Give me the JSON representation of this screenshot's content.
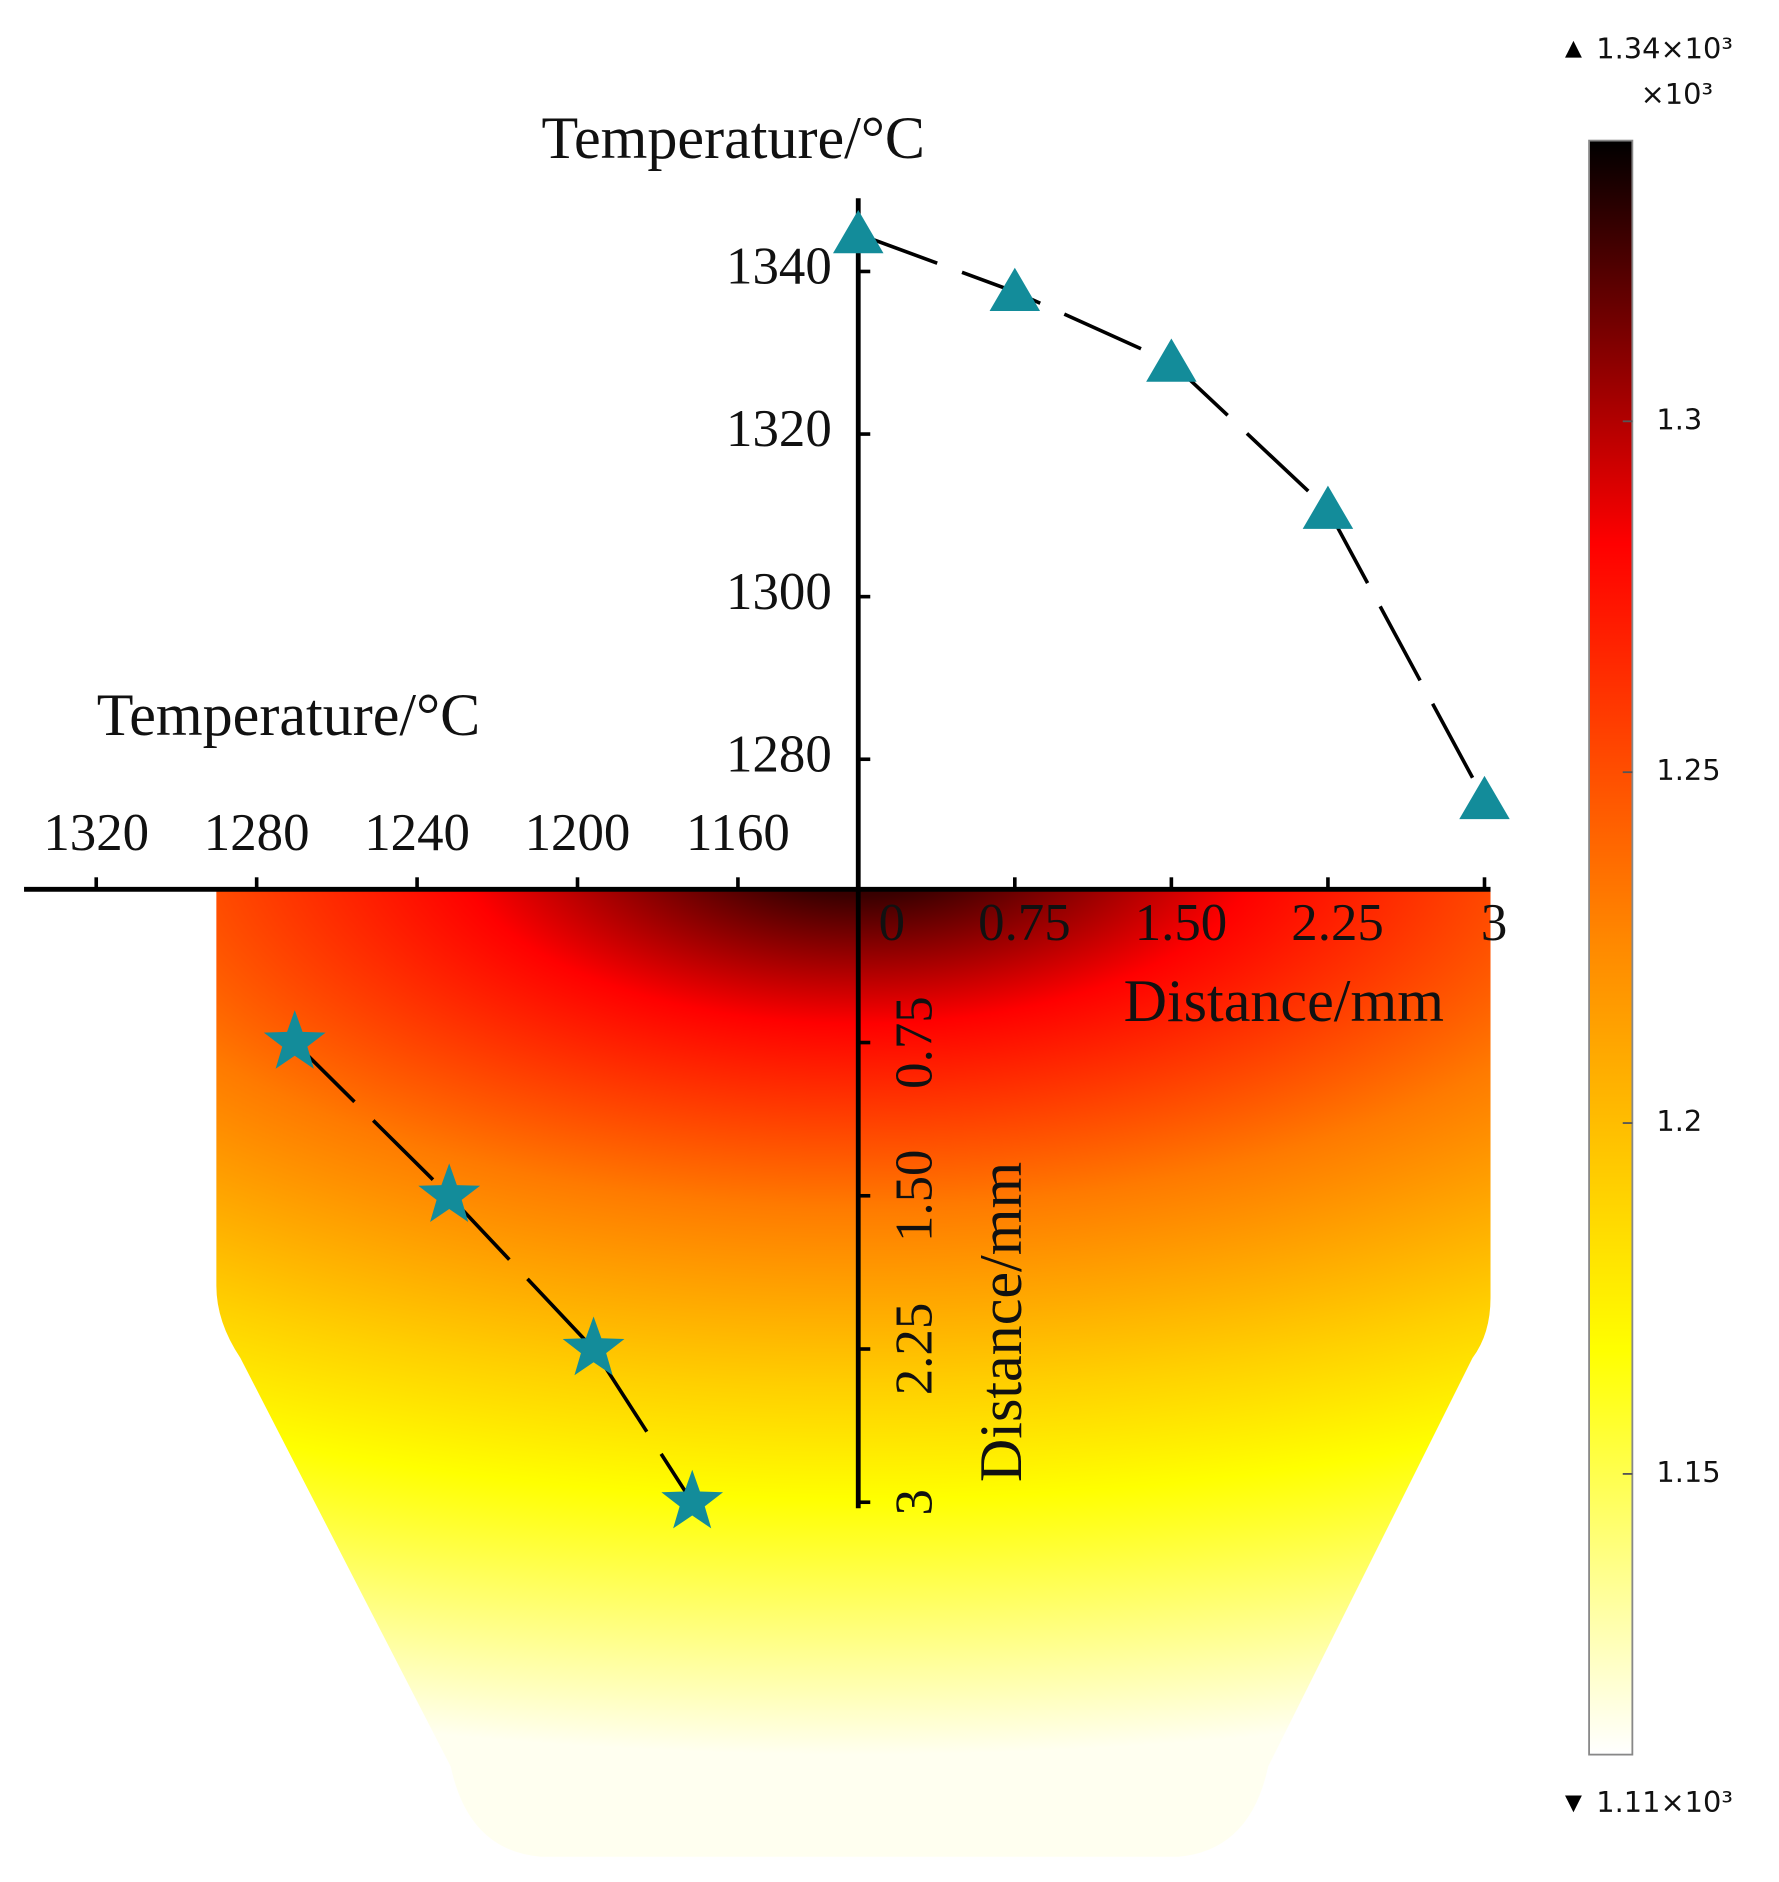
{
  "chart_data": [
    {
      "type": "line",
      "ylabel": "Temperature/°C",
      "xlabel": "Distance/mm",
      "x": [
        0,
        0.75,
        1.5,
        2.25,
        3
      ],
      "values": [
        1344.6,
        1337.5,
        1328.8,
        1310.7,
        1275
      ],
      "marker": "triangle",
      "color": "#138c9a",
      "line_color": "#000000",
      "xlim": [
        0,
        3
      ],
      "xticks": [
        0,
        0.75,
        {
          "value": 1.5,
          "label": "1.50"
        },
        2.25,
        3
      ],
      "ylim": [
        1264,
        1349
      ],
      "yticks": [
        1280,
        1300,
        1320,
        1340
      ]
    },
    {
      "type": "line",
      "orientation": "rotated",
      "ylabel": "Temperature/°C",
      "xlabel": "Distance/mm",
      "x": [
        0.75,
        1.5,
        2.25,
        3
      ],
      "values": [
        1270.5,
        1232,
        1196,
        1171.4
      ],
      "marker": "star",
      "color": "#138c9a",
      "line_color": "#000000",
      "xlim": [
        0,
        3
      ],
      "xticks": [
        0.75,
        {
          "value": 1.5,
          "label": "1.50"
        },
        2.25,
        3
      ],
      "ylim": [
        1130,
        1338
      ],
      "yticks": [
        1160,
        1200,
        1240,
        1280,
        1320
      ]
    },
    {
      "type": "colorbar",
      "unit_label": "×10³",
      "max_label": "1.34×10³",
      "min_label": "1.11×10³",
      "ylim": [
        1.11,
        1.34
      ],
      "yticks": [
        1.15,
        1.2,
        1.25,
        1.3
      ],
      "colors": [
        "#ffffff",
        "#ffff00",
        "#ff8a00",
        "#ff0000",
        "#000000"
      ]
    }
  ]
}
